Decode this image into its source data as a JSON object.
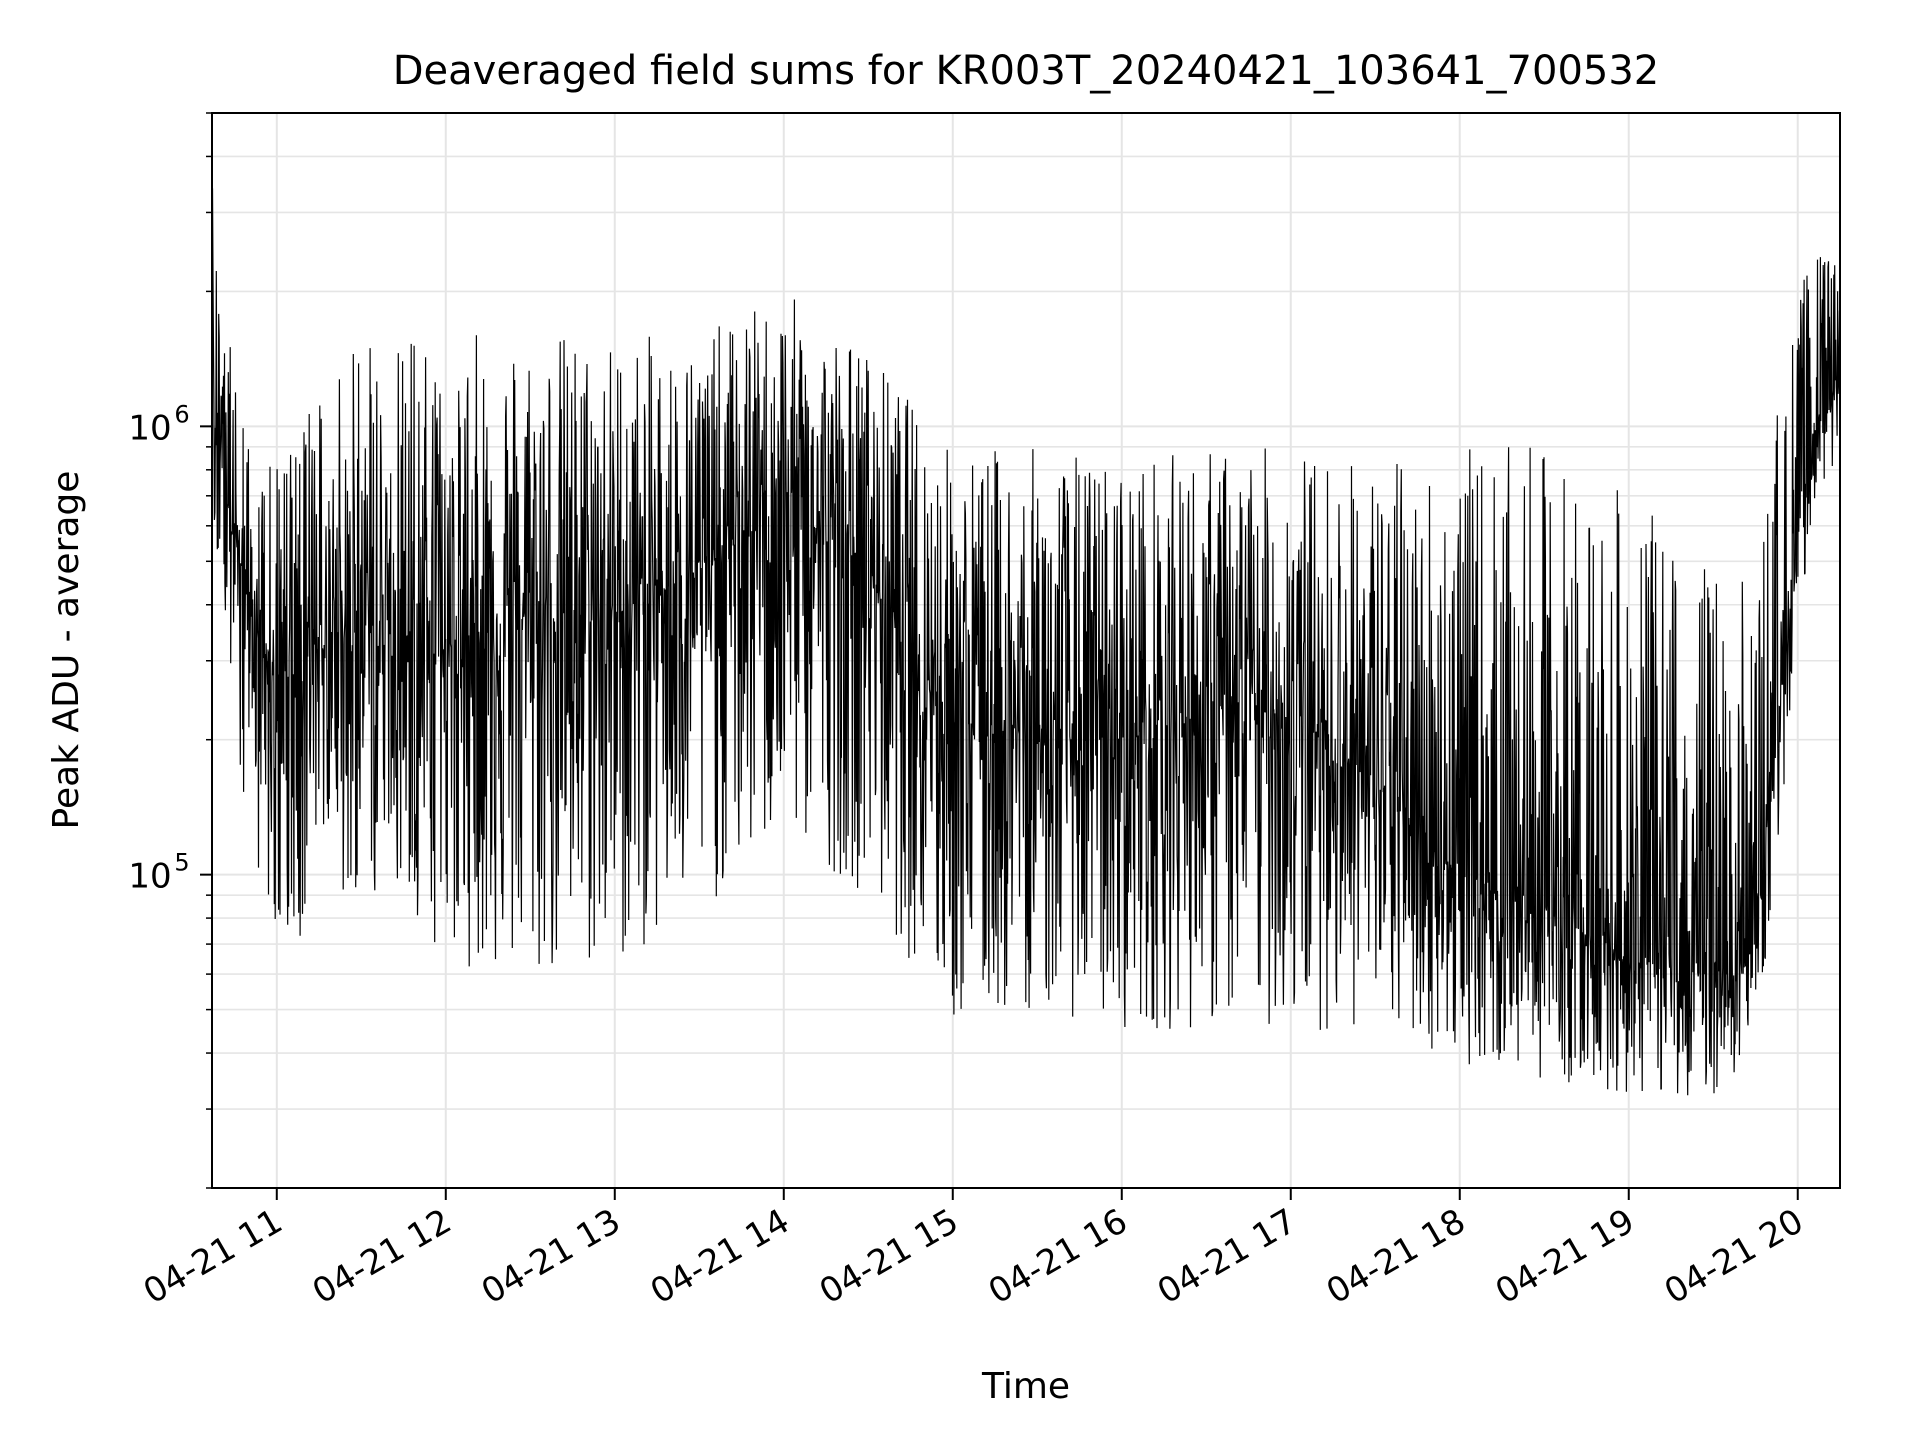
{
  "chart_data": {
    "type": "line",
    "title": "Deaveraged field sums for KR003T_20240421_103641_700532",
    "xlabel": "Time",
    "ylabel": "Peak ADU - average",
    "x_scale": "time",
    "y_scale": "log",
    "xlim": [
      "2024-04-21 10:37",
      "2024-04-21 20:15"
    ],
    "ylim": [
      20000,
      5000000
    ],
    "grid": true,
    "line_color": "#000000",
    "x_ticks": [
      {
        "time": "2024-04-21 11:00",
        "label": "04-21 11"
      },
      {
        "time": "2024-04-21 12:00",
        "label": "04-21 12"
      },
      {
        "time": "2024-04-21 13:00",
        "label": "04-21 13"
      },
      {
        "time": "2024-04-21 14:00",
        "label": "04-21 14"
      },
      {
        "time": "2024-04-21 15:00",
        "label": "04-21 15"
      },
      {
        "time": "2024-04-21 16:00",
        "label": "04-21 16"
      },
      {
        "time": "2024-04-21 17:00",
        "label": "04-21 17"
      },
      {
        "time": "2024-04-21 18:00",
        "label": "04-21 18"
      },
      {
        "time": "2024-04-21 19:00",
        "label": "04-21 19"
      },
      {
        "time": "2024-04-21 20:00",
        "label": "04-21 20"
      }
    ],
    "y_ticks": [
      {
        "value": 100000,
        "base": "10",
        "exp": "5"
      },
      {
        "value": 1000000,
        "base": "10",
        "exp": "6"
      }
    ],
    "series": [
      {
        "envelope": [
          {
            "time": "2024-04-21 10:37",
            "low": 600000,
            "high": 3800000
          },
          {
            "time": "2024-04-21 10:50",
            "low": 120000,
            "high": 900000
          },
          {
            "time": "2024-04-21 11:00",
            "low": 70000,
            "high": 800000
          },
          {
            "time": "2024-04-21 11:20",
            "low": 70000,
            "high": 1500000
          },
          {
            "time": "2024-04-21 11:40",
            "low": 80000,
            "high": 1500000
          },
          {
            "time": "2024-04-21 12:00",
            "low": 65000,
            "high": 1600000
          },
          {
            "time": "2024-04-21 12:30",
            "low": 55000,
            "high": 1700000
          },
          {
            "time": "2024-04-21 13:00",
            "low": 60000,
            "high": 1600000
          },
          {
            "time": "2024-04-21 13:30",
            "low": 80000,
            "high": 1600000
          },
          {
            "time": "2024-04-21 14:00",
            "low": 120000,
            "high": 2000000
          },
          {
            "time": "2024-04-21 14:30",
            "low": 90000,
            "high": 1500000
          },
          {
            "time": "2024-04-21 15:00",
            "low": 45000,
            "high": 900000
          },
          {
            "time": "2024-04-21 15:30",
            "low": 50000,
            "high": 900000
          },
          {
            "time": "2024-04-21 16:00",
            "low": 45000,
            "high": 850000
          },
          {
            "time": "2024-04-21 16:30",
            "low": 45000,
            "high": 900000
          },
          {
            "time": "2024-04-21 17:00",
            "low": 45000,
            "high": 900000
          },
          {
            "time": "2024-04-21 17:30",
            "low": 45000,
            "high": 850000
          },
          {
            "time": "2024-04-21 18:00",
            "low": 38000,
            "high": 900000
          },
          {
            "time": "2024-04-21 18:30",
            "low": 35000,
            "high": 900000
          },
          {
            "time": "2024-04-21 19:00",
            "low": 32000,
            "high": 700000
          },
          {
            "time": "2024-04-21 19:30",
            "low": 32000,
            "high": 500000
          },
          {
            "time": "2024-04-21 19:45",
            "low": 40000,
            "high": 450000
          },
          {
            "time": "2024-04-21 19:55",
            "low": 150000,
            "high": 1500000
          },
          {
            "time": "2024-04-21 20:05",
            "low": 650000,
            "high": 2500000
          },
          {
            "time": "2024-04-21 20:15",
            "low": 850000,
            "high": 2300000
          }
        ],
        "baseline": [
          {
            "time": "2024-04-21 10:37",
            "value": 1000000
          },
          {
            "time": "2024-04-21 10:50",
            "value": 400000
          },
          {
            "time": "2024-04-21 11:00",
            "value": 260000
          },
          {
            "time": "2024-04-21 11:30",
            "value": 380000
          },
          {
            "time": "2024-04-21 12:00",
            "value": 330000
          },
          {
            "time": "2024-04-21 12:30",
            "value": 380000
          },
          {
            "time": "2024-04-21 13:00",
            "value": 380000
          },
          {
            "time": "2024-04-21 13:30",
            "value": 480000
          },
          {
            "time": "2024-04-21 14:00",
            "value": 650000
          },
          {
            "time": "2024-04-21 14:30",
            "value": 480000
          },
          {
            "time": "2024-04-21 15:00",
            "value": 230000
          },
          {
            "time": "2024-04-21 15:30",
            "value": 200000
          },
          {
            "time": "2024-04-21 16:00",
            "value": 200000
          },
          {
            "time": "2024-04-21 16:30",
            "value": 230000
          },
          {
            "time": "2024-04-21 17:00",
            "value": 230000
          },
          {
            "time": "2024-04-21 17:30",
            "value": 160000
          },
          {
            "time": "2024-04-21 18:00",
            "value": 100000
          },
          {
            "time": "2024-04-21 18:30",
            "value": 85000
          },
          {
            "time": "2024-04-21 19:00",
            "value": 65000
          },
          {
            "time": "2024-04-21 19:30",
            "value": 60000
          },
          {
            "time": "2024-04-21 19:45",
            "value": 70000
          },
          {
            "time": "2024-04-21 19:55",
            "value": 300000
          },
          {
            "time": "2024-04-21 20:05",
            "value": 950000
          },
          {
            "time": "2024-04-21 20:15",
            "value": 1300000
          }
        ]
      }
    ]
  }
}
